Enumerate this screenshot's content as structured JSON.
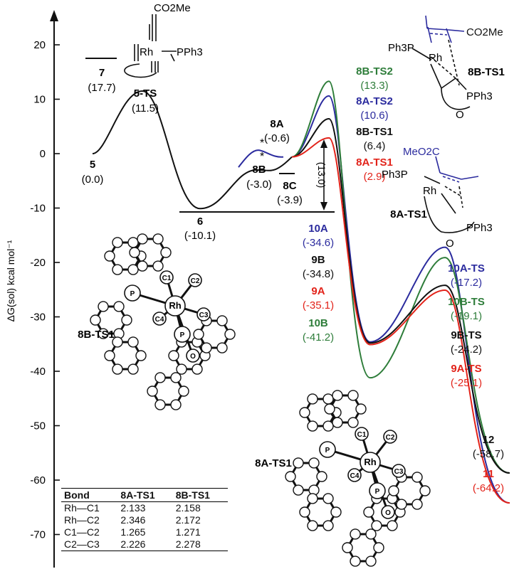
{
  "chart_data": {
    "type": "line",
    "ylabel": "ΔG(sol) kcal mol⁻¹",
    "ylim": [
      -70,
      20
    ],
    "yticks": [
      20,
      10,
      0,
      -10,
      -20,
      -30,
      -40,
      -50,
      -60,
      -70
    ],
    "colors": {
      "black": "#111111",
      "blue": "#2b2b9e",
      "green": "#2e7d3a",
      "red": "#e2231a"
    },
    "states": [
      {
        "id": "5",
        "value": 0.0,
        "label": "5",
        "value_text": "(0.0)",
        "color": "black"
      },
      {
        "id": "5-TS",
        "value": 11.5,
        "label": "5-TS",
        "value_text": "(11.5)",
        "color": "black"
      },
      {
        "id": "7",
        "value": 17.7,
        "label": "7",
        "value_text": "(17.7)",
        "color": "black"
      },
      {
        "id": "6",
        "value": -10.1,
        "label": "6",
        "value_text": "(-10.1)",
        "color": "black"
      },
      {
        "id": "8A",
        "value": -0.6,
        "label": "8A",
        "value_text": "(-0.6)",
        "color": "black"
      },
      {
        "id": "8B",
        "value": -3.0,
        "label": "8B",
        "value_text": "(-3.0)",
        "color": "black"
      },
      {
        "id": "8C",
        "value": -3.9,
        "label": "8C",
        "value_text": "(-3.9)",
        "color": "black"
      },
      {
        "id": "8B-TS2",
        "value": 13.3,
        "label": "8B-TS2",
        "value_text": "(13.3)",
        "color": "green"
      },
      {
        "id": "8A-TS2",
        "value": 10.6,
        "label": "8A-TS2",
        "value_text": "(10.6)",
        "color": "blue"
      },
      {
        "id": "8B-TS1",
        "value": 6.4,
        "label": "8B-TS1",
        "value_text": "(6.4)",
        "color": "black"
      },
      {
        "id": "8A-TS1",
        "value": 2.9,
        "label": "8A-TS1",
        "value_text": "(2.9)",
        "color": "red"
      },
      {
        "id": "10A",
        "value": -34.6,
        "label": "10A",
        "value_text": "(-34.6)",
        "color": "blue"
      },
      {
        "id": "9B",
        "value": -34.8,
        "label": "9B",
        "value_text": "(-34.8)",
        "color": "black"
      },
      {
        "id": "9A",
        "value": -35.1,
        "label": "9A",
        "value_text": "(-35.1)",
        "color": "red"
      },
      {
        "id": "10B",
        "value": -41.2,
        "label": "10B",
        "value_text": "(-41.2)",
        "color": "green"
      },
      {
        "id": "10A-TS",
        "value": -17.2,
        "label": "10A-TS",
        "value_text": "(-17.2)",
        "color": "blue"
      },
      {
        "id": "10B-TS",
        "value": -19.1,
        "label": "10B-TS",
        "value_text": "(-19.1)",
        "color": "green"
      },
      {
        "id": "9B-TS",
        "value": -24.2,
        "label": "9B-TS",
        "value_text": "(-24.2)",
        "color": "black"
      },
      {
        "id": "9A-TS",
        "value": -25.1,
        "label": "9A-TS",
        "value_text": "(-25.1)",
        "color": "red"
      },
      {
        "id": "12",
        "value": -58.7,
        "label": "12",
        "value_text": "(-58.7)",
        "color": "black"
      },
      {
        "id": "11",
        "value": -64.2,
        "label": "11",
        "value_text": "(-64.2)",
        "color": "red"
      }
    ],
    "series": [
      {
        "name": "8A pathway",
        "color": "blue",
        "points": [
          -10.1,
          10.6,
          -34.6,
          -17.2,
          -64.2
        ]
      },
      {
        "name": "8B pathway",
        "color": "green",
        "points": [
          -10.1,
          13.3,
          -41.2,
          -19.1,
          -58.7
        ]
      },
      {
        "name": "9B pathway",
        "color": "black",
        "points": [
          -10.1,
          6.4,
          -34.8,
          -24.2,
          -58.7
        ]
      },
      {
        "name": "9A pathway",
        "color": "red",
        "points": [
          -10.1,
          2.9,
          -35.1,
          -25.1,
          -64.2
        ]
      }
    ],
    "annotations": {
      "barrier": "(13.0)",
      "stars": [
        "*",
        "*"
      ]
    },
    "structure_labels": {
      "top_left_reagent": "CO2Me",
      "pph3": "PPh3",
      "ph3p": "Ph3P",
      "rh": "Rh",
      "o": "O",
      "meo2c": "MeO2C",
      "co2me": "CO2Me",
      "label_8b_ts1": "8B-TS1",
      "label_8a_ts1": "8A-TS1",
      "xray_8b": "8B-TS1",
      "xray_8a": "8A-TS1"
    },
    "atoms_8b": {
      "rh": "Rh",
      "p1": "P",
      "p2": "P",
      "o": "O",
      "c1": "C1",
      "c2": "C2",
      "c3": "C3",
      "c4": "C4"
    },
    "atoms_8a": {
      "rh": "Rh",
      "p1": "P",
      "p2": "P",
      "o": "O",
      "c1": "C1",
      "c2": "C2",
      "c3": "C3",
      "c4": "C4"
    },
    "table": {
      "headers": [
        "Bond",
        "8A-TS1",
        "8B-TS1"
      ],
      "rows": [
        [
          "Rh—C1",
          "2.133",
          "2.158"
        ],
        [
          "Rh—C2",
          "2.346",
          "2.172"
        ],
        [
          "C1—C2",
          "1.265",
          "1.271"
        ],
        [
          "C2—C3",
          "2.226",
          "2.278"
        ]
      ]
    }
  }
}
